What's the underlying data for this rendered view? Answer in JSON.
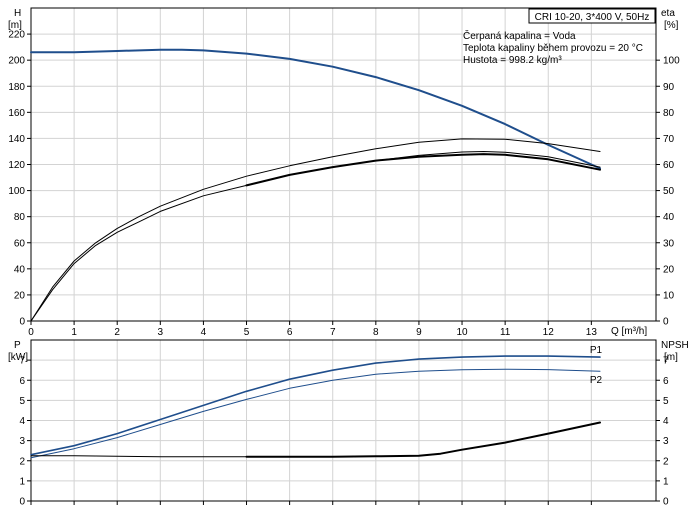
{
  "chart_data": [
    {
      "type": "line",
      "title_box": "CRI 10-20, 3*400 V, 50Hz",
      "info_lines": [
        "Čerpaná kapalina = Voda",
        "Teplota kapaliny během provozu = 20 °C",
        "Hustota = 998.2 kg/m³"
      ],
      "xlabel": "Q [m³/h]",
      "ylabel_left_name": "H",
      "ylabel_left_unit": "[m]",
      "ylabel_right_name": "eta",
      "ylabel_right_unit": "[%]",
      "xlim": [
        0,
        14.5
      ],
      "ylim_left": [
        0,
        240
      ],
      "ylim_right": [
        0,
        120
      ],
      "x_ticks": [
        0,
        1,
        2,
        3,
        4,
        5,
        6,
        7,
        8,
        9,
        10,
        11,
        12,
        13
      ],
      "y_ticks_left": [
        0,
        20,
        40,
        60,
        80,
        100,
        120,
        140,
        160,
        180,
        200,
        220
      ],
      "y_ticks_right": [
        0,
        10,
        20,
        30,
        40,
        50,
        60,
        70,
        80,
        90,
        100
      ],
      "grid": true,
      "series": [
        {
          "axis": "left",
          "color": "#1f4e8c",
          "width": 2,
          "x": [
            0,
            1,
            2,
            3,
            3.5,
            4,
            5,
            6,
            7,
            8,
            9,
            10,
            11,
            12,
            13.2
          ],
          "y": [
            206,
            206,
            207,
            208,
            208,
            207.5,
            205,
            201,
            195,
            187,
            177,
            165,
            151,
            135,
            117
          ]
        },
        {
          "axis": "right",
          "color": "#000000",
          "width": 1,
          "x": [
            0,
            0.5,
            1,
            1.5,
            2,
            2.5,
            3,
            4,
            5,
            6,
            7,
            8,
            9,
            10,
            10.5,
            11,
            12,
            13.2
          ],
          "y": [
            0,
            12,
            22,
            29,
            34,
            38,
            42,
            48,
            52,
            56,
            59,
            61.5,
            63.5,
            64.8,
            65,
            64.7,
            63,
            59
          ]
        },
        {
          "axis": "right",
          "color": "#000000",
          "width": 2,
          "x": [
            5,
            6,
            7,
            8,
            9,
            10,
            10.5,
            11,
            12,
            13.2
          ],
          "y": [
            52,
            56,
            59,
            61.5,
            63,
            63.7,
            64,
            63.7,
            62,
            58
          ]
        },
        {
          "axis": "right",
          "color": "#000000",
          "width": 1,
          "x": [
            0,
            0.5,
            1,
            1.5,
            2,
            2.5,
            3,
            4,
            5,
            6,
            7,
            8,
            9,
            10,
            11,
            12,
            13.2
          ],
          "y": [
            0,
            13,
            23,
            30,
            35.5,
            40,
            44,
            50.5,
            55.5,
            59.5,
            63,
            66,
            68.5,
            69.8,
            69.7,
            68,
            65
          ]
        }
      ]
    },
    {
      "type": "line",
      "ylabel_left_name": "P",
      "ylabel_left_unit": "[kW]",
      "ylabel_right_name": "NPSH",
      "ylabel_right_unit": "[m]",
      "xlim": [
        0,
        14.5
      ],
      "ylim_left": [
        0,
        8
      ],
      "ylim_right": [
        0,
        8
      ],
      "y_ticks_left": [
        0,
        1,
        2,
        3,
        4,
        5,
        6,
        7
      ],
      "y_ticks_right": [
        0,
        1,
        2,
        3,
        4,
        5,
        6,
        7
      ],
      "grid": true,
      "series": [
        {
          "name": "P1",
          "axis": "left",
          "color": "#1f4e8c",
          "width": 1.6,
          "x": [
            0,
            1,
            2,
            3,
            4,
            5,
            6,
            7,
            8,
            9,
            10,
            11,
            12,
            13.2
          ],
          "y": [
            2.3,
            2.75,
            3.35,
            4.05,
            4.75,
            5.45,
            6.05,
            6.5,
            6.85,
            7.05,
            7.15,
            7.2,
            7.2,
            7.15
          ]
        },
        {
          "name": "P2",
          "axis": "left",
          "color": "#1f4e8c",
          "width": 1,
          "x": [
            0,
            1,
            2,
            3,
            4,
            5,
            6,
            7,
            8,
            9,
            10,
            11,
            12,
            13.2
          ],
          "y": [
            2.15,
            2.6,
            3.15,
            3.8,
            4.45,
            5.05,
            5.6,
            6.0,
            6.3,
            6.45,
            6.52,
            6.55,
            6.53,
            6.45
          ]
        },
        {
          "axis": "right",
          "color": "#000000",
          "width": 1,
          "x": [
            0,
            1,
            2,
            3,
            4,
            5
          ],
          "y": [
            2.25,
            2.25,
            2.22,
            2.2,
            2.2,
            2.2
          ]
        },
        {
          "axis": "right",
          "color": "#000000",
          "width": 2,
          "x": [
            5,
            6,
            7,
            8,
            9,
            9.5,
            10,
            11,
            12,
            13.2
          ],
          "y": [
            2.2,
            2.2,
            2.2,
            2.22,
            2.25,
            2.35,
            2.55,
            2.9,
            3.35,
            3.9
          ]
        }
      ]
    }
  ]
}
